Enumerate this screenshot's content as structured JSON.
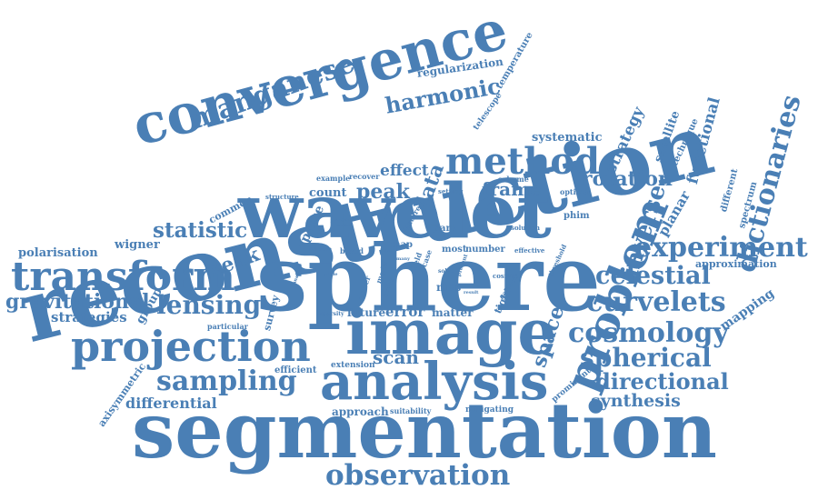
{
  "style": {
    "word_color": "#4a7fb5",
    "background": "#ffffff"
  },
  "words": [
    "reconstruction",
    "segmentation",
    "sphere",
    "wavelet",
    "image",
    "analysis",
    "convergence",
    "transform",
    "projection",
    "method",
    "problem",
    "observation",
    "experiment",
    "manganese",
    "harmonic",
    "curvelets",
    "cosmology",
    "spherical",
    "celestial",
    "lensing",
    "sampling",
    "directional",
    "gravitational",
    "dictionaries",
    "synthesis",
    "inverse",
    "weak",
    "statistic",
    "peak",
    "rotation",
    "frame",
    "scan",
    "space",
    "error",
    "data",
    "effect",
    "strategies",
    "strategy",
    "polarisation",
    "wigner",
    "differential",
    "axisymmetric",
    "regularization",
    "temperature",
    "approximation",
    "mapping",
    "functional",
    "planar",
    "technique",
    "satellite",
    "systematic",
    "common",
    "count",
    "group",
    "approach",
    "suitability",
    "mitigating",
    "prominent",
    "efficient",
    "extension",
    "future",
    "matter",
    "particular",
    "survey",
    "sparse",
    "sparsity",
    "different",
    "spectrum",
    "telescope",
    "example",
    "recover",
    "structure",
    "scheme",
    "setting",
    "optimal",
    "phim",
    "solution",
    "dark",
    "feature",
    "map",
    "most",
    "number",
    "effective",
    "based",
    "science",
    "mas",
    "tight",
    "threshold",
    "cosmic",
    "galactic",
    "field",
    "case",
    "solve",
    "present",
    "result",
    "analytic",
    "angle",
    "power",
    "mode",
    "order",
    "require",
    "kaiser",
    "local",
    "many"
  ]
}
